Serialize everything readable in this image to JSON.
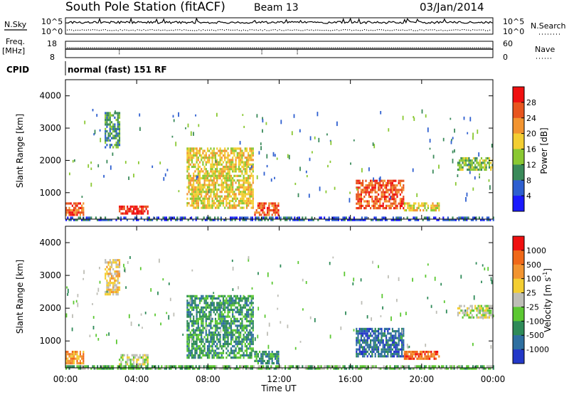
{
  "header": {
    "title": "South Pole Station (fitACF)",
    "beam": "Beam 13",
    "date": "03/Jan/2014"
  },
  "strips": {
    "nsky_label": "N.Sky",
    "nsky_ticks": [
      "10^5",
      "10^0"
    ],
    "nsearch_label": "N.Search",
    "nsearch_ticks": [
      "10^5",
      "10^0"
    ],
    "freq_label": "Freq.",
    "freq_unit": "[MHz]",
    "freq_ticks": [
      "18",
      "8"
    ],
    "nave_label": "Nave",
    "nave_ticks": [
      "60",
      "0"
    ],
    "cpid_label": "CPID",
    "cpid_value": "normal (fast) 151 RF"
  },
  "chart_data": [
    {
      "type": "heatmap",
      "name": "power",
      "xlabel": "Time UT",
      "ylabel": "Slant Range [km]",
      "colorbar_label": "Power [dB]",
      "xlim": [
        0,
        24
      ],
      "ylim": [
        180,
        4500
      ],
      "x_ticks": [
        0,
        4,
        8,
        12,
        16,
        20,
        24
      ],
      "x_tick_labels": [
        "00:00",
        "04:00",
        "08:00",
        "12:00",
        "16:00",
        "20:00",
        "00:00"
      ],
      "y_ticks": [
        1000,
        2000,
        3000,
        4000
      ],
      "y_tick_labels": [
        "1000",
        "2000",
        "3000",
        "4000"
      ],
      "colorbar": {
        "ticks": [
          "4",
          "8",
          "12",
          "16",
          "20",
          "24",
          "28"
        ],
        "colors": [
          "#1a1aff",
          "#2e5fd0",
          "#3a8a5a",
          "#8ac832",
          "#f3ce32",
          "#f29430",
          "#e8551e",
          "#f01010"
        ]
      },
      "regions": [
        {
          "t": [
            0.0,
            1.0
          ],
          "r": [
            300,
            700
          ],
          "level": 6
        },
        {
          "t": [
            3.0,
            4.6
          ],
          "r": [
            350,
            600
          ],
          "level": 7
        },
        {
          "t": [
            2.2,
            3.0
          ],
          "r": [
            2400,
            3500
          ],
          "level": 2
        },
        {
          "t": [
            6.8,
            10.5
          ],
          "r": [
            500,
            2400
          ],
          "level": 4
        },
        {
          "t": [
            10.6,
            12.0
          ],
          "r": [
            300,
            700
          ],
          "level": 6
        },
        {
          "t": [
            16.3,
            19.0
          ],
          "r": [
            500,
            1400
          ],
          "level": 6
        },
        {
          "t": [
            19.0,
            21.0
          ],
          "r": [
            450,
            700
          ],
          "level": 4
        },
        {
          "t": [
            22.0,
            24.0
          ],
          "r": [
            1700,
            2100
          ],
          "level": 3
        },
        {
          "t": [
            0.0,
            24.0
          ],
          "r": [
            180,
            260
          ],
          "level": 1
        }
      ]
    },
    {
      "type": "heatmap",
      "name": "velocity",
      "xlabel": "Time UT",
      "ylabel": "Slant Range [km]",
      "colorbar_label": "Velocity [m s-1]",
      "xlim": [
        0,
        24
      ],
      "ylim": [
        180,
        4500
      ],
      "x_ticks": [
        0,
        4,
        8,
        12,
        16,
        20,
        24
      ],
      "x_tick_labels": [
        "00:00",
        "04:00",
        "08:00",
        "12:00",
        "16:00",
        "20:00",
        "00:00"
      ],
      "y_ticks": [
        1000,
        2000,
        3000,
        4000
      ],
      "y_tick_labels": [
        "1000",
        "2000",
        "3000",
        "4000"
      ],
      "colorbar": {
        "ticks": [
          "1000",
          "500",
          "100",
          "25",
          "-25",
          "-100",
          "-500",
          "-1000"
        ],
        "colors": [
          "#2338c8",
          "#2e6fa0",
          "#2e8a58",
          "#5cc832",
          "#bebeb6",
          "#f3ce32",
          "#f29430",
          "#f06818",
          "#f01010"
        ]
      },
      "regions": [
        {
          "t": [
            0.0,
            1.0
          ],
          "r": [
            300,
            700
          ],
          "level": 6
        },
        {
          "t": [
            3.0,
            4.6
          ],
          "r": [
            300,
            600
          ],
          "level": 4
        },
        {
          "t": [
            2.2,
            3.0
          ],
          "r": [
            2400,
            3500
          ],
          "level": 5
        },
        {
          "t": [
            6.8,
            10.5
          ],
          "r": [
            500,
            2400
          ],
          "level": 2
        },
        {
          "t": [
            10.6,
            12.0
          ],
          "r": [
            300,
            700
          ],
          "level": 2
        },
        {
          "t": [
            16.3,
            19.0
          ],
          "r": [
            500,
            1400
          ],
          "level": 1
        },
        {
          "t": [
            19.0,
            21.0
          ],
          "r": [
            450,
            700
          ],
          "level": 7
        },
        {
          "t": [
            22.0,
            24.0
          ],
          "r": [
            1700,
            2100
          ],
          "level": 4
        },
        {
          "t": [
            0.0,
            24.0
          ],
          "r": [
            180,
            260
          ],
          "level": 3
        }
      ]
    }
  ]
}
